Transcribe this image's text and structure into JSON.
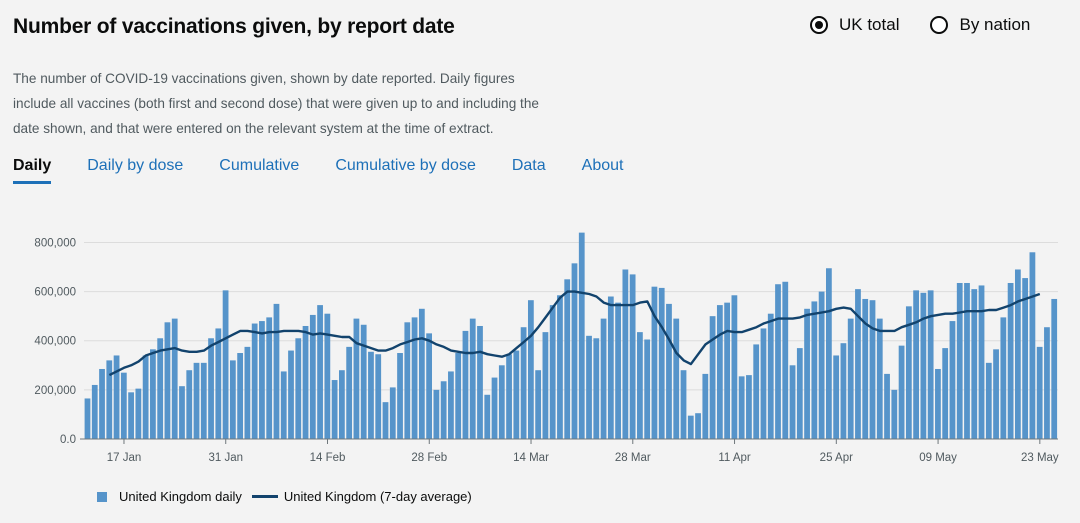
{
  "header": {
    "title": "Number of vaccinations given, by report date"
  },
  "radios": {
    "uk_total": "UK total",
    "by_nation": "By nation",
    "selected": "uk_total"
  },
  "description": "The number of COVID-19 vaccinations given, shown by date reported. Daily figures include all vaccines (both first and second dose) that were given up to and including the date shown, and that were entered on the relevant system at the time of extract.",
  "tabs": [
    {
      "label": "Daily",
      "active": true
    },
    {
      "label": "Daily by dose",
      "active": false
    },
    {
      "label": "Cumulative",
      "active": false
    },
    {
      "label": "Cumulative by dose",
      "active": false
    },
    {
      "label": "Data",
      "active": false
    },
    {
      "label": "About",
      "active": false
    }
  ],
  "colors": {
    "bar": "#5694ca",
    "avg": "#12436d",
    "grid": "#dcdcdc",
    "axis_text": "#505a5f",
    "link": "#1d70b8"
  },
  "chart_data": {
    "type": "bar",
    "title": "",
    "xlabel": "",
    "ylabel": "",
    "ylim": [
      0,
      850000
    ],
    "y_ticks": [
      {
        "value": 0,
        "label": "0.0"
      },
      {
        "value": 200000,
        "label": "200,000"
      },
      {
        "value": 400000,
        "label": "400,000"
      },
      {
        "value": 600000,
        "label": "600,000"
      },
      {
        "value": 800000,
        "label": "800,000"
      }
    ],
    "x_ticks": [
      {
        "index": 5,
        "label": "17 Jan"
      },
      {
        "index": 19,
        "label": "31 Jan"
      },
      {
        "index": 33,
        "label": "14 Feb"
      },
      {
        "index": 47,
        "label": "28 Feb"
      },
      {
        "index": 61,
        "label": "14 Mar"
      },
      {
        "index": 75,
        "label": "28 Mar"
      },
      {
        "index": 89,
        "label": "11 Apr"
      },
      {
        "index": 103,
        "label": "25 Apr"
      },
      {
        "index": 117,
        "label": "09 May"
      },
      {
        "index": 131,
        "label": "23 May"
      }
    ],
    "start_date": "12 Jan",
    "series": [
      {
        "name": "United Kingdom daily",
        "kind": "bar",
        "values": [
          165000,
          220000,
          285000,
          320000,
          340000,
          270000,
          190000,
          205000,
          340000,
          365000,
          410000,
          475000,
          490000,
          215000,
          280000,
          310000,
          310000,
          410000,
          450000,
          605000,
          320000,
          350000,
          375000,
          470000,
          480000,
          495000,
          550000,
          275000,
          360000,
          410000,
          460000,
          505000,
          545000,
          510000,
          240000,
          280000,
          375000,
          490000,
          465000,
          355000,
          345000,
          150000,
          210000,
          350000,
          475000,
          495000,
          530000,
          430000,
          200000,
          235000,
          275000,
          350000,
          440000,
          490000,
          460000,
          180000,
          250000,
          300000,
          345000,
          360000,
          455000,
          565000,
          280000,
          435000,
          545000,
          585000,
          650000,
          715000,
          840000,
          420000,
          410000,
          490000,
          580000,
          555000,
          690000,
          670000,
          435000,
          405000,
          620000,
          615000,
          550000,
          490000,
          280000,
          95000,
          105000,
          265000,
          500000,
          545000,
          555000,
          585000,
          255000,
          260000,
          385000,
          450000,
          510000,
          630000,
          640000,
          300000,
          370000,
          530000,
          560000,
          600000,
          695000,
          340000,
          390000,
          490000,
          610000,
          570000,
          565000,
          490000,
          265000,
          200000,
          380000,
          540000,
          605000,
          595000,
          605000,
          285000,
          370000,
          480000,
          635000,
          635000,
          610000,
          625000,
          310000,
          365000,
          495000,
          635000,
          690000,
          655000,
          760000,
          375000,
          455000,
          570000
        ]
      },
      {
        "name": "United Kingdom (7-day average)",
        "kind": "line",
        "start_index": 3,
        "values": [
          260000,
          275000,
          290000,
          300000,
          315000,
          340000,
          350000,
          360000,
          365000,
          370000,
          360000,
          355000,
          355000,
          360000,
          380000,
          395000,
          410000,
          425000,
          440000,
          440000,
          435000,
          430000,
          435000,
          435000,
          440000,
          440000,
          440000,
          435000,
          425000,
          430000,
          425000,
          420000,
          415000,
          415000,
          390000,
          380000,
          370000,
          360000,
          360000,
          370000,
          385000,
          395000,
          405000,
          410000,
          400000,
          385000,
          375000,
          360000,
          355000,
          350000,
          350000,
          355000,
          345000,
          340000,
          335000,
          345000,
          370000,
          395000,
          420000,
          455000,
          495000,
          535000,
          575000,
          600000,
          600000,
          595000,
          590000,
          580000,
          555000,
          545000,
          545000,
          545000,
          545000,
          555000,
          560000,
          500000,
          455000,
          405000,
          350000,
          320000,
          305000,
          345000,
          385000,
          405000,
          425000,
          440000,
          435000,
          435000,
          445000,
          455000,
          470000,
          480000,
          490000,
          490000,
          490000,
          495000,
          505000,
          510000,
          515000,
          520000,
          530000,
          535000,
          530000,
          500000,
          470000,
          450000,
          440000,
          440000,
          440000,
          455000,
          465000,
          475000,
          490000,
          500000,
          505000,
          510000,
          510000,
          515000,
          520000,
          520000,
          520000,
          525000,
          525000,
          535000,
          545000,
          560000,
          570000,
          580000,
          590000
        ]
      }
    ],
    "legend": {
      "position": "bottom-left",
      "entries": [
        "United Kingdom daily",
        "United Kingdom (7-day average)"
      ]
    }
  }
}
